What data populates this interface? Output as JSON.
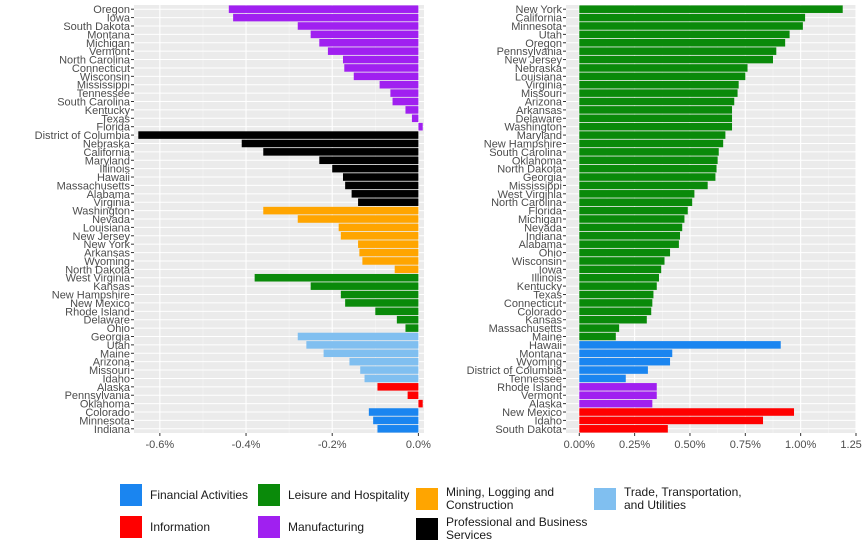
{
  "colors": {
    "Financial Activities": "#1a85f0",
    "Leisure and Hospitality": "#0a8a0a",
    "Mining, Logging and Construction": "#ffa500",
    "Trade, Transportation, and Utilities": "#80bff0",
    "Information": "#ff0000",
    "Manufacturing": "#a020f0",
    "Professional and Business Services": "#000000"
  },
  "legend": [
    {
      "key": "Financial Activities",
      "label": "Financial Activities"
    },
    {
      "key": "Leisure and Hospitality",
      "label": "Leisure and Hospitality"
    },
    {
      "key": "Mining, Logging and Construction",
      "label": "Mining, Logging and\nConstruction"
    },
    {
      "key": "Trade, Transportation, and Utilities",
      "label": "Trade, Transportation,\nand Utilities"
    },
    {
      "key": "Information",
      "label": "Information"
    },
    {
      "key": "Manufacturing",
      "label": "Manufacturing"
    },
    {
      "key": "Professional and Business Services",
      "label": "Professional and Business\nServices"
    }
  ],
  "chart_data": [
    {
      "type": "bar",
      "orientation": "horizontal",
      "title": "",
      "xlabel": "",
      "ylabel": "",
      "xlim": [
        -0.66,
        0.013
      ],
      "xticks": [
        -0.6,
        -0.4,
        -0.2,
        0.0
      ],
      "xtick_labels": [
        "-0.6%",
        "-0.4%",
        "-0.2%",
        "0.0%"
      ],
      "grid": true,
      "series": [
        {
          "state": "Oregon",
          "value": -0.44,
          "sector": "Manufacturing"
        },
        {
          "state": "Iowa",
          "value": -0.43,
          "sector": "Manufacturing"
        },
        {
          "state": "South Dakota",
          "value": -0.28,
          "sector": "Manufacturing"
        },
        {
          "state": "Montana",
          "value": -0.25,
          "sector": "Manufacturing"
        },
        {
          "state": "Michigan",
          "value": -0.23,
          "sector": "Manufacturing"
        },
        {
          "state": "Vermont",
          "value": -0.21,
          "sector": "Manufacturing"
        },
        {
          "state": "North Carolina",
          "value": -0.175,
          "sector": "Manufacturing"
        },
        {
          "state": "Connecticut",
          "value": -0.172,
          "sector": "Manufacturing"
        },
        {
          "state": "Wisconsin",
          "value": -0.15,
          "sector": "Manufacturing"
        },
        {
          "state": "Mississippi",
          "value": -0.09,
          "sector": "Manufacturing"
        },
        {
          "state": "Tennessee",
          "value": -0.065,
          "sector": "Manufacturing"
        },
        {
          "state": "South Carolina",
          "value": -0.06,
          "sector": "Manufacturing"
        },
        {
          "state": "Kentucky",
          "value": -0.03,
          "sector": "Manufacturing"
        },
        {
          "state": "Texas",
          "value": -0.015,
          "sector": "Manufacturing"
        },
        {
          "state": "Florida",
          "value": 0.01,
          "sector": "Manufacturing"
        },
        {
          "state": "District of Columbia",
          "value": -0.65,
          "sector": "Professional and Business Services"
        },
        {
          "state": "Nebraska",
          "value": -0.41,
          "sector": "Professional and Business Services"
        },
        {
          "state": "California",
          "value": -0.36,
          "sector": "Professional and Business Services"
        },
        {
          "state": "Maryland",
          "value": -0.23,
          "sector": "Professional and Business Services"
        },
        {
          "state": "Illinois",
          "value": -0.2,
          "sector": "Professional and Business Services"
        },
        {
          "state": "Hawaii",
          "value": -0.175,
          "sector": "Professional and Business Services"
        },
        {
          "state": "Massachusetts",
          "value": -0.17,
          "sector": "Professional and Business Services"
        },
        {
          "state": "Alabama",
          "value": -0.155,
          "sector": "Professional and Business Services"
        },
        {
          "state": "Virginia",
          "value": -0.14,
          "sector": "Professional and Business Services"
        },
        {
          "state": "Washington",
          "value": -0.36,
          "sector": "Mining, Logging and Construction"
        },
        {
          "state": "Nevada",
          "value": -0.28,
          "sector": "Mining, Logging and Construction"
        },
        {
          "state": "Louisiana",
          "value": -0.185,
          "sector": "Mining, Logging and Construction"
        },
        {
          "state": "New Jersey",
          "value": -0.18,
          "sector": "Mining, Logging and Construction"
        },
        {
          "state": "New York",
          "value": -0.14,
          "sector": "Mining, Logging and Construction"
        },
        {
          "state": "Arkansas",
          "value": -0.137,
          "sector": "Mining, Logging and Construction"
        },
        {
          "state": "Wyoming",
          "value": -0.13,
          "sector": "Mining, Logging and Construction"
        },
        {
          "state": "North Dakota",
          "value": -0.055,
          "sector": "Mining, Logging and Construction"
        },
        {
          "state": "West Virginia",
          "value": -0.38,
          "sector": "Leisure and Hospitality"
        },
        {
          "state": "Kansas",
          "value": -0.25,
          "sector": "Leisure and Hospitality"
        },
        {
          "state": "New Hampshire",
          "value": -0.18,
          "sector": "Leisure and Hospitality"
        },
        {
          "state": "New Mexico",
          "value": -0.17,
          "sector": "Leisure and Hospitality"
        },
        {
          "state": "Rhode Island",
          "value": -0.1,
          "sector": "Leisure and Hospitality"
        },
        {
          "state": "Delaware",
          "value": -0.05,
          "sector": "Leisure and Hospitality"
        },
        {
          "state": "Ohio",
          "value": -0.03,
          "sector": "Leisure and Hospitality"
        },
        {
          "state": "Georgia",
          "value": -0.28,
          "sector": "Trade, Transportation, and Utilities"
        },
        {
          "state": "Utah",
          "value": -0.26,
          "sector": "Trade, Transportation, and Utilities"
        },
        {
          "state": "Maine",
          "value": -0.22,
          "sector": "Trade, Transportation, and Utilities"
        },
        {
          "state": "Arizona",
          "value": -0.16,
          "sector": "Trade, Transportation, and Utilities"
        },
        {
          "state": "Missouri",
          "value": -0.135,
          "sector": "Trade, Transportation, and Utilities"
        },
        {
          "state": "Idaho",
          "value": -0.125,
          "sector": "Trade, Transportation, and Utilities"
        },
        {
          "state": "Alaska",
          "value": -0.095,
          "sector": "Information"
        },
        {
          "state": "Pennsylvania",
          "value": -0.025,
          "sector": "Information"
        },
        {
          "state": "Oklahoma",
          "value": 0.01,
          "sector": "Information"
        },
        {
          "state": "Colorado",
          "value": -0.115,
          "sector": "Financial Activities"
        },
        {
          "state": "Minnesota",
          "value": -0.105,
          "sector": "Financial Activities"
        },
        {
          "state": "Indiana",
          "value": -0.095,
          "sector": "Financial Activities"
        }
      ]
    },
    {
      "type": "bar",
      "orientation": "horizontal",
      "title": "",
      "xlabel": "",
      "ylabel": "",
      "xlim": [
        -0.06,
        1.25
      ],
      "xticks": [
        0.0,
        0.25,
        0.5,
        0.75,
        1.0,
        1.25
      ],
      "xtick_labels": [
        "0.00%",
        "0.25%",
        "0.50%",
        "0.75%",
        "1.00%",
        "1.25%"
      ],
      "grid": true,
      "series": [
        {
          "state": "New York",
          "value": 1.19,
          "sector": "Leisure and Hospitality"
        },
        {
          "state": "California",
          "value": 1.02,
          "sector": "Leisure and Hospitality"
        },
        {
          "state": "Minnesota",
          "value": 1.01,
          "sector": "Leisure and Hospitality"
        },
        {
          "state": "Utah",
          "value": 0.95,
          "sector": "Leisure and Hospitality"
        },
        {
          "state": "Oregon",
          "value": 0.93,
          "sector": "Leisure and Hospitality"
        },
        {
          "state": "Pennsylvania",
          "value": 0.89,
          "sector": "Leisure and Hospitality"
        },
        {
          "state": "New Jersey",
          "value": 0.875,
          "sector": "Leisure and Hospitality"
        },
        {
          "state": "Nebraska",
          "value": 0.76,
          "sector": "Leisure and Hospitality"
        },
        {
          "state": "Louisiana",
          "value": 0.75,
          "sector": "Leisure and Hospitality"
        },
        {
          "state": "Virginia",
          "value": 0.72,
          "sector": "Leisure and Hospitality"
        },
        {
          "state": "Missouri",
          "value": 0.715,
          "sector": "Leisure and Hospitality"
        },
        {
          "state": "Arizona",
          "value": 0.7,
          "sector": "Leisure and Hospitality"
        },
        {
          "state": "Arkansas",
          "value": 0.69,
          "sector": "Leisure and Hospitality"
        },
        {
          "state": "Delaware",
          "value": 0.69,
          "sector": "Leisure and Hospitality"
        },
        {
          "state": "Washington",
          "value": 0.69,
          "sector": "Leisure and Hospitality"
        },
        {
          "state": "Maryland",
          "value": 0.66,
          "sector": "Leisure and Hospitality"
        },
        {
          "state": "New Hampshire",
          "value": 0.65,
          "sector": "Leisure and Hospitality"
        },
        {
          "state": "South Carolina",
          "value": 0.63,
          "sector": "Leisure and Hospitality"
        },
        {
          "state": "Oklahoma",
          "value": 0.625,
          "sector": "Leisure and Hospitality"
        },
        {
          "state": "North Dakota",
          "value": 0.62,
          "sector": "Leisure and Hospitality"
        },
        {
          "state": "Georgia",
          "value": 0.615,
          "sector": "Leisure and Hospitality"
        },
        {
          "state": "Mississippi",
          "value": 0.58,
          "sector": "Leisure and Hospitality"
        },
        {
          "state": "West Virginia",
          "value": 0.52,
          "sector": "Leisure and Hospitality"
        },
        {
          "state": "North Carolina",
          "value": 0.51,
          "sector": "Leisure and Hospitality"
        },
        {
          "state": "Florida",
          "value": 0.49,
          "sector": "Leisure and Hospitality"
        },
        {
          "state": "Michigan",
          "value": 0.475,
          "sector": "Leisure and Hospitality"
        },
        {
          "state": "Nevada",
          "value": 0.465,
          "sector": "Leisure and Hospitality"
        },
        {
          "state": "Indiana",
          "value": 0.455,
          "sector": "Leisure and Hospitality"
        },
        {
          "state": "Alabama",
          "value": 0.45,
          "sector": "Leisure and Hospitality"
        },
        {
          "state": "Ohio",
          "value": 0.41,
          "sector": "Leisure and Hospitality"
        },
        {
          "state": "Wisconsin",
          "value": 0.385,
          "sector": "Leisure and Hospitality"
        },
        {
          "state": "Iowa",
          "value": 0.37,
          "sector": "Leisure and Hospitality"
        },
        {
          "state": "Illinois",
          "value": 0.36,
          "sector": "Leisure and Hospitality"
        },
        {
          "state": "Kentucky",
          "value": 0.35,
          "sector": "Leisure and Hospitality"
        },
        {
          "state": "Texas",
          "value": 0.335,
          "sector": "Leisure and Hospitality"
        },
        {
          "state": "Connecticut",
          "value": 0.33,
          "sector": "Leisure and Hospitality"
        },
        {
          "state": "Colorado",
          "value": 0.325,
          "sector": "Leisure and Hospitality"
        },
        {
          "state": "Kansas",
          "value": 0.305,
          "sector": "Leisure and Hospitality"
        },
        {
          "state": "Massachusetts",
          "value": 0.18,
          "sector": "Leisure and Hospitality"
        },
        {
          "state": "Maine",
          "value": 0.165,
          "sector": "Leisure and Hospitality"
        },
        {
          "state": "Hawaii",
          "value": 0.91,
          "sector": "Financial Activities"
        },
        {
          "state": "Montana",
          "value": 0.42,
          "sector": "Financial Activities"
        },
        {
          "state": "Wyoming",
          "value": 0.41,
          "sector": "Financial Activities"
        },
        {
          "state": "District of Columbia",
          "value": 0.31,
          "sector": "Financial Activities"
        },
        {
          "state": "Tennessee",
          "value": 0.21,
          "sector": "Financial Activities"
        },
        {
          "state": "Rhode Island",
          "value": 0.35,
          "sector": "Manufacturing"
        },
        {
          "state": "Vermont",
          "value": 0.35,
          "sector": "Manufacturing"
        },
        {
          "state": "Alaska",
          "value": 0.33,
          "sector": "Manufacturing"
        },
        {
          "state": "New Mexico",
          "value": 0.97,
          "sector": "Information"
        },
        {
          "state": "Idaho",
          "value": 0.83,
          "sector": "Information"
        },
        {
          "state": "South Dakota",
          "value": 0.4,
          "sector": "Information"
        }
      ]
    }
  ]
}
